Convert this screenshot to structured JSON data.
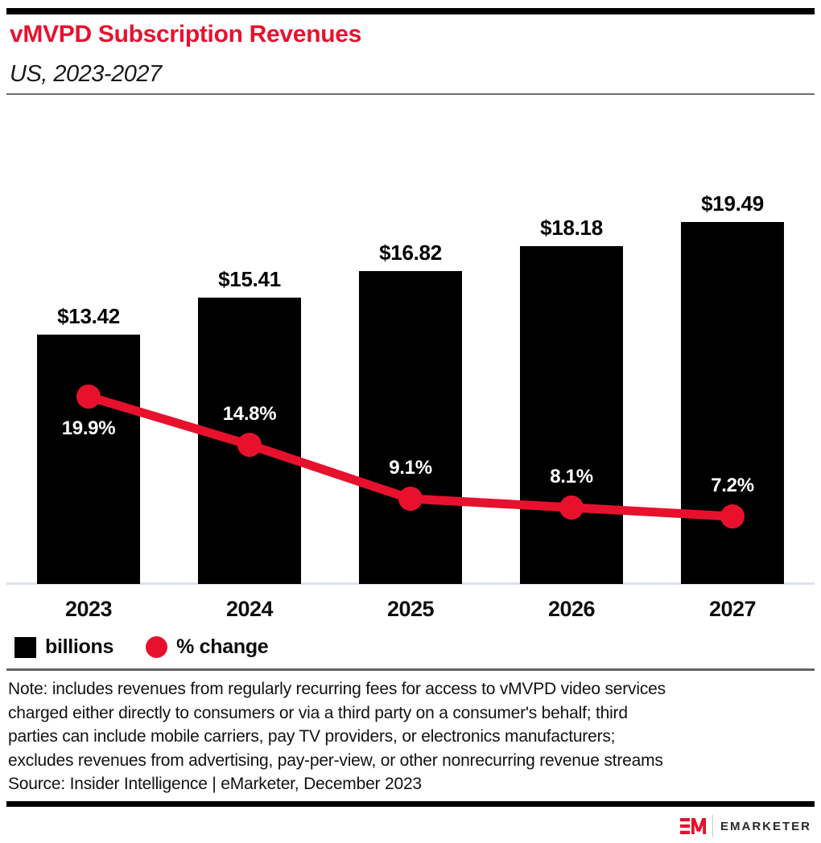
{
  "header": {
    "title": "vMVPD Subscription Revenues",
    "subtitle": "US, 2023-2027"
  },
  "colors": {
    "accent": "#e8112d",
    "bar": "#000000",
    "baseline": "#dde2f1"
  },
  "chart_data": {
    "type": "bar",
    "categories": [
      "2023",
      "2024",
      "2025",
      "2026",
      "2027"
    ],
    "series": [
      {
        "name": "billions",
        "type": "bar",
        "unit": "US$ billions",
        "color": "#000000",
        "values": [
          13.42,
          15.41,
          16.82,
          18.18,
          19.49
        ],
        "labels": [
          "$13.42",
          "$15.41",
          "$16.82",
          "$18.18",
          "$19.49"
        ]
      },
      {
        "name": "% change",
        "type": "line",
        "unit": "percent",
        "color": "#e8112d",
        "values": [
          19.9,
          14.8,
          9.1,
          8.1,
          7.2
        ],
        "labels": [
          "19.9%",
          "14.8%",
          "9.1%",
          "8.1%",
          "7.2%"
        ]
      }
    ],
    "legend": [
      {
        "label": "billions",
        "swatch": "square",
        "color": "#000000"
      },
      {
        "label": "% change",
        "swatch": "circle",
        "color": "#e8112d"
      }
    ],
    "title": "vMVPD Subscription Revenues",
    "xlabel": "",
    "ylabel": "",
    "grid": false,
    "legend_position": "bottom-left"
  },
  "footer": {
    "note_lines": [
      "Note: includes revenues from regularly recurring fees for access to vMVPD video services",
      "charged either directly to consumers or via a third party on a consumer's behalf; third",
      "parties can include mobile carriers, pay TV providers, or electronics manufacturers;",
      "excludes revenues from advertising, pay-per-view, or other nonrecurring revenue streams"
    ],
    "source": "Source: Insider Intelligence | eMarketer, December 2023"
  },
  "branding": {
    "logo_mark": "EM",
    "logo_text": "EMARKETER"
  }
}
